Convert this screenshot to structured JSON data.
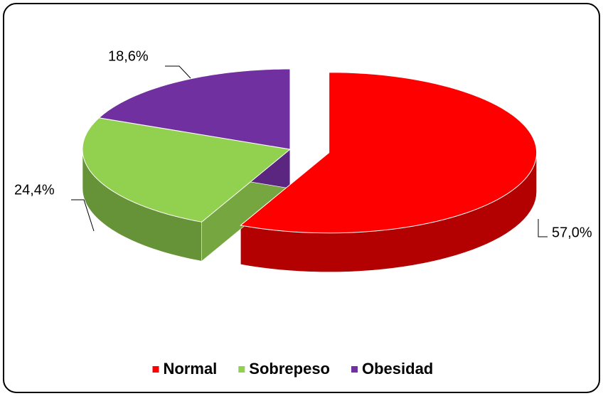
{
  "chart_data": {
    "type": "pie",
    "categories": [
      "Normal",
      "Sobrepeso",
      "Obesidad"
    ],
    "values": [
      57.0,
      24.4,
      18.6
    ],
    "value_labels": [
      "57,0%",
      "24,4%",
      "18,6%"
    ],
    "colors": [
      "#ff0000",
      "#92d050",
      "#7030a0"
    ],
    "legend": "bottom"
  }
}
